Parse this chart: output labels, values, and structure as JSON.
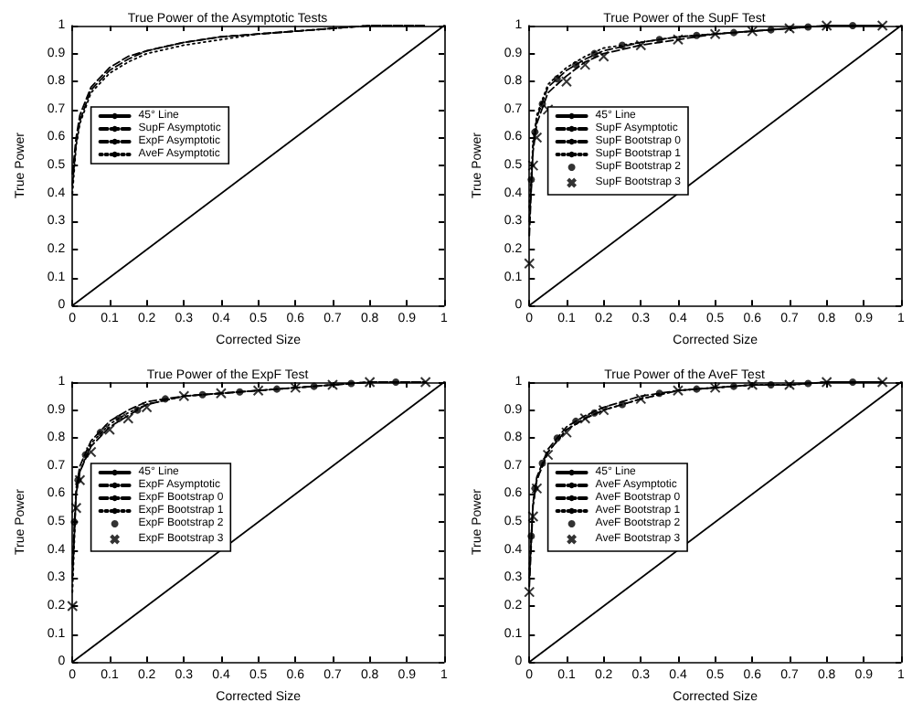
{
  "chart_data": [
    {
      "type": "line",
      "title": "True Power of the Asymptotic Tests",
      "xlabel": "Corrected Size",
      "ylabel": "True Power",
      "xlim": [
        0,
        1
      ],
      "ylim": [
        0,
        1
      ],
      "xticks": [
        0,
        0.1,
        0.2,
        0.3,
        0.4,
        0.5,
        0.6,
        0.7,
        0.8,
        0.9,
        1
      ],
      "yticks": [
        0,
        0.1,
        0.2,
        0.3,
        0.4,
        0.5,
        0.6,
        0.7,
        0.8,
        0.9,
        1
      ],
      "grid": false,
      "legend": "left",
      "marker": "none",
      "x": [
        0,
        0.01,
        0.02,
        0.05,
        0.1,
        0.15,
        0.2,
        0.3,
        0.4,
        0.5,
        0.6,
        0.7,
        0.8,
        0.95
      ],
      "series": [
        {
          "name": "45° Line",
          "color": "#000000",
          "line_style": "solid",
          "x": [
            0,
            1
          ],
          "values": [
            0,
            1
          ]
        },
        {
          "name": "SupF Asymptotic",
          "color": "#000000",
          "line_style": "dashed",
          "values": [
            0.47,
            0.6,
            0.68,
            0.78,
            0.85,
            0.89,
            0.91,
            0.94,
            0.96,
            0.97,
            0.98,
            0.99,
            1,
            1
          ]
        },
        {
          "name": "ExpF Asymptotic",
          "color": "#000000",
          "line_style": "dashed",
          "values": [
            0.43,
            0.58,
            0.66,
            0.77,
            0.84,
            0.88,
            0.91,
            0.94,
            0.96,
            0.97,
            0.98,
            0.99,
            1,
            1
          ]
        },
        {
          "name": "AveF Asymptotic",
          "color": "#000000",
          "line_style": "dotted",
          "values": [
            0.4,
            0.57,
            0.65,
            0.76,
            0.83,
            0.87,
            0.9,
            0.93,
            0.95,
            0.97,
            0.98,
            0.99,
            1,
            1
          ]
        }
      ]
    },
    {
      "type": "line",
      "title": "True Power of the SupF Test",
      "xlabel": "Corrected Size",
      "ylabel": "True Power",
      "xlim": [
        0,
        1
      ],
      "ylim": [
        0,
        1
      ],
      "xticks": [
        0,
        0.1,
        0.2,
        0.3,
        0.4,
        0.5,
        0.6,
        0.7,
        0.8,
        0.9,
        1
      ],
      "yticks": [
        0,
        0.1,
        0.2,
        0.3,
        0.4,
        0.5,
        0.6,
        0.7,
        0.8,
        0.9,
        1
      ],
      "grid": false,
      "legend": "left",
      "marker": "none",
      "x": [
        0,
        0.01,
        0.02,
        0.05,
        0.1,
        0.15,
        0.2,
        0.3,
        0.4,
        0.5,
        0.6,
        0.7,
        0.8,
        0.95
      ],
      "series": [
        {
          "name": "45° Line",
          "color": "#000000",
          "line_style": "solid",
          "x": [
            0,
            1
          ],
          "values": [
            0,
            1
          ]
        },
        {
          "name": "SupF Asymptotic",
          "color": "#000000",
          "line_style": "dashed",
          "values": [
            0.3,
            0.55,
            0.65,
            0.76,
            0.82,
            0.87,
            0.9,
            0.93,
            0.95,
            0.97,
            0.98,
            0.99,
            1,
            1
          ]
        },
        {
          "name": "SupF Bootstrap 0",
          "color": "#000000",
          "line_style": "dashed",
          "values": [
            0.25,
            0.57,
            0.67,
            0.78,
            0.84,
            0.88,
            0.91,
            0.94,
            0.96,
            0.97,
            0.98,
            0.99,
            1,
            1
          ]
        },
        {
          "name": "SupF Bootstrap 1",
          "color": "#000000",
          "line_style": "dotted",
          "values": [
            0.35,
            0.58,
            0.68,
            0.79,
            0.85,
            0.89,
            0.92,
            0.94,
            0.96,
            0.97,
            0.98,
            0.99,
            1,
            1
          ]
        },
        {
          "name": "SupF Bootstrap 2",
          "color": "#000000",
          "type": "scatter",
          "marker": "circle",
          "x": [
            0.005,
            0.015,
            0.035,
            0.075,
            0.125,
            0.175,
            0.25,
            0.35,
            0.45,
            0.55,
            0.65,
            0.75,
            0.87
          ],
          "values": [
            0.45,
            0.62,
            0.72,
            0.81,
            0.86,
            0.9,
            0.93,
            0.95,
            0.965,
            0.975,
            0.985,
            0.995,
            1
          ]
        },
        {
          "name": "SupF Bootstrap 3",
          "color": "#000000",
          "type": "scatter",
          "marker": "cross",
          "values": [
            0.15,
            0.5,
            0.6,
            0.7,
            0.8,
            0.86,
            0.89,
            0.93,
            0.95,
            0.97,
            0.98,
            0.99,
            1,
            1
          ]
        }
      ]
    },
    {
      "type": "line",
      "title": "True Power of the ExpF Test",
      "xlabel": "Corrected Size",
      "ylabel": "True Power",
      "xlim": [
        0,
        1
      ],
      "ylim": [
        0,
        1
      ],
      "xticks": [
        0,
        0.1,
        0.2,
        0.3,
        0.4,
        0.5,
        0.6,
        0.7,
        0.8,
        0.9,
        1
      ],
      "yticks": [
        0,
        0.1,
        0.2,
        0.3,
        0.4,
        0.5,
        0.6,
        0.7,
        0.8,
        0.9,
        1
      ],
      "grid": false,
      "legend": "left",
      "marker": "none",
      "x": [
        0,
        0.01,
        0.02,
        0.05,
        0.1,
        0.15,
        0.2,
        0.3,
        0.4,
        0.5,
        0.6,
        0.7,
        0.8,
        0.95
      ],
      "series": [
        {
          "name": "45° Line",
          "color": "#000000",
          "line_style": "solid",
          "x": [
            0,
            1
          ],
          "values": [
            0,
            1
          ]
        },
        {
          "name": "ExpF Asymptotic",
          "color": "#000000",
          "line_style": "dashed",
          "values": [
            0.35,
            0.62,
            0.7,
            0.79,
            0.86,
            0.9,
            0.93,
            0.95,
            0.96,
            0.97,
            0.98,
            0.99,
            1,
            1
          ]
        },
        {
          "name": "ExpF Bootstrap 0",
          "color": "#000000",
          "line_style": "dashed",
          "values": [
            0.3,
            0.6,
            0.68,
            0.77,
            0.84,
            0.88,
            0.92,
            0.95,
            0.96,
            0.97,
            0.98,
            0.99,
            1,
            1
          ]
        },
        {
          "name": "ExpF Bootstrap 1",
          "color": "#000000",
          "line_style": "dotted",
          "values": [
            0.25,
            0.6,
            0.68,
            0.78,
            0.85,
            0.89,
            0.92,
            0.95,
            0.96,
            0.97,
            0.98,
            0.99,
            1,
            1
          ]
        },
        {
          "name": "ExpF Bootstrap 2",
          "color": "#000000",
          "type": "scatter",
          "marker": "circle",
          "x": [
            0.005,
            0.015,
            0.035,
            0.075,
            0.125,
            0.175,
            0.25,
            0.35,
            0.45,
            0.55,
            0.65,
            0.75,
            0.87
          ],
          "values": [
            0.5,
            0.65,
            0.74,
            0.82,
            0.87,
            0.9,
            0.94,
            0.955,
            0.965,
            0.975,
            0.985,
            0.995,
            1
          ]
        },
        {
          "name": "ExpF Bootstrap 3",
          "color": "#000000",
          "type": "scatter",
          "marker": "cross",
          "values": [
            0.2,
            0.55,
            0.65,
            0.75,
            0.83,
            0.87,
            0.91,
            0.95,
            0.96,
            0.97,
            0.98,
            0.99,
            1,
            1
          ]
        }
      ]
    },
    {
      "type": "line",
      "title": "True Power of the AveF Test",
      "xlabel": "Corrected Size",
      "ylabel": "True Power",
      "xlim": [
        0,
        1
      ],
      "ylim": [
        0,
        1
      ],
      "xticks": [
        0,
        0.1,
        0.2,
        0.3,
        0.4,
        0.5,
        0.6,
        0.7,
        0.8,
        0.9,
        1
      ],
      "yticks": [
        0,
        0.1,
        0.2,
        0.3,
        0.4,
        0.5,
        0.6,
        0.7,
        0.8,
        0.9,
        1
      ],
      "grid": false,
      "legend": "left",
      "marker": "none",
      "x": [
        0,
        0.01,
        0.02,
        0.05,
        0.1,
        0.15,
        0.2,
        0.3,
        0.4,
        0.5,
        0.6,
        0.7,
        0.8,
        0.95
      ],
      "series": [
        {
          "name": "45° Line",
          "color": "#000000",
          "line_style": "solid",
          "x": [
            0,
            1
          ],
          "values": [
            0,
            1
          ]
        },
        {
          "name": "AveF Asymptotic",
          "color": "#000000",
          "line_style": "dashed",
          "values": [
            0.3,
            0.57,
            0.66,
            0.76,
            0.84,
            0.88,
            0.91,
            0.95,
            0.97,
            0.98,
            0.99,
            0.99,
            1,
            1
          ]
        },
        {
          "name": "AveF Bootstrap 0",
          "color": "#000000",
          "line_style": "dashed",
          "values": [
            0.27,
            0.56,
            0.65,
            0.75,
            0.83,
            0.87,
            0.9,
            0.94,
            0.97,
            0.98,
            0.99,
            0.99,
            1,
            1
          ]
        },
        {
          "name": "AveF Bootstrap 1",
          "color": "#000000",
          "line_style": "dotted",
          "values": [
            0.33,
            0.56,
            0.65,
            0.75,
            0.83,
            0.87,
            0.9,
            0.94,
            0.97,
            0.98,
            0.99,
            0.99,
            1,
            1
          ]
        },
        {
          "name": "AveF Bootstrap 2",
          "color": "#000000",
          "type": "scatter",
          "marker": "circle",
          "x": [
            0.005,
            0.015,
            0.035,
            0.075,
            0.125,
            0.175,
            0.25,
            0.35,
            0.45,
            0.55,
            0.65,
            0.75,
            0.87
          ],
          "values": [
            0.45,
            0.62,
            0.71,
            0.8,
            0.86,
            0.89,
            0.92,
            0.96,
            0.975,
            0.985,
            0.99,
            0.995,
            1
          ]
        },
        {
          "name": "AveF Bootstrap 3",
          "color": "#000000",
          "type": "scatter",
          "marker": "cross",
          "values": [
            0.25,
            0.52,
            0.62,
            0.74,
            0.82,
            0.87,
            0.9,
            0.94,
            0.97,
            0.98,
            0.99,
            0.99,
            1,
            1
          ]
        }
      ]
    }
  ]
}
